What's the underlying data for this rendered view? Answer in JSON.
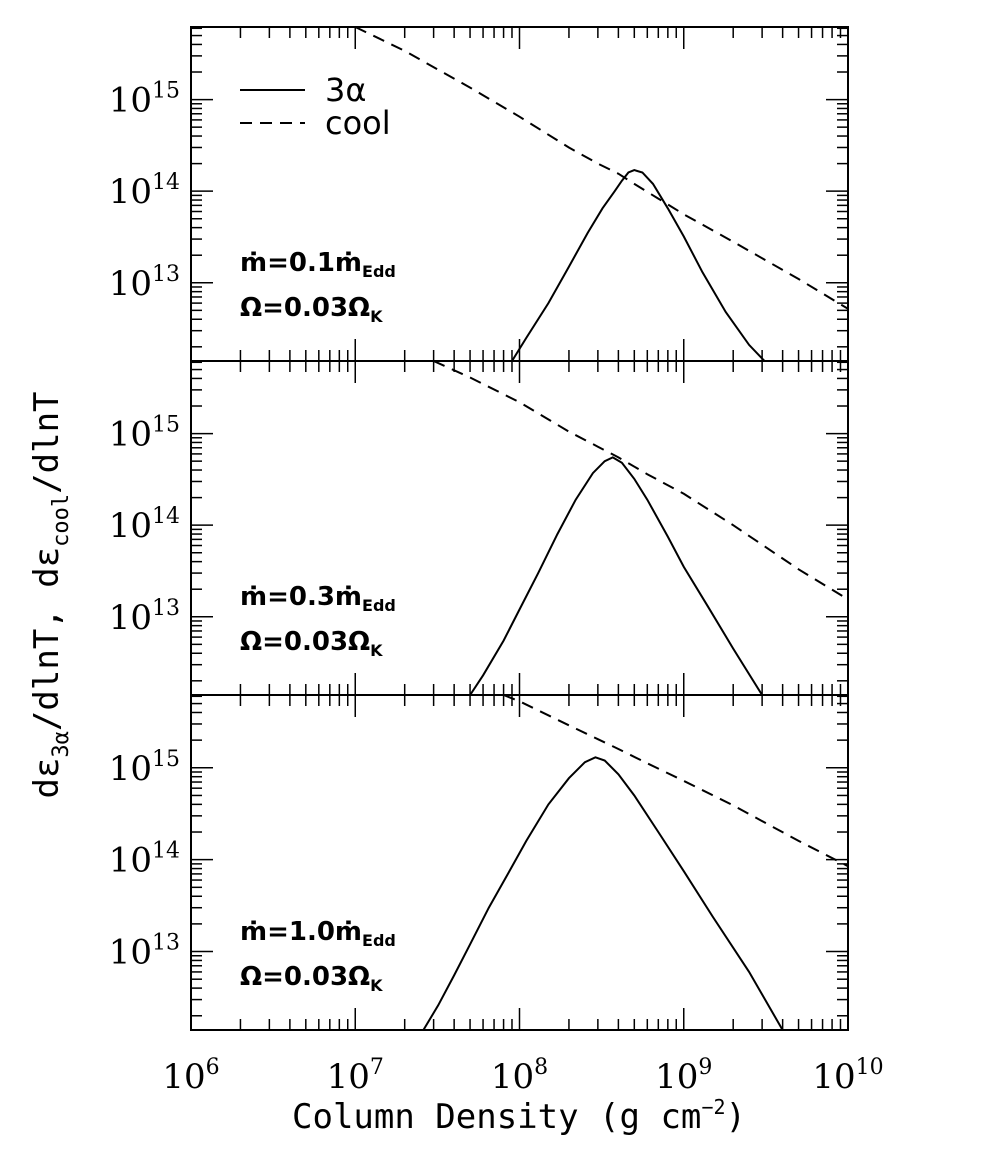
{
  "chart_data": {
    "type": "line",
    "xlabel": "Column Density (g cm",
    "xlabel_exp": "−2",
    "xlabel_close": ")",
    "ylabel_parts": [
      "dε",
      "3α",
      "/dlnT,  dε",
      "cool",
      "/dlnT"
    ],
    "x_scale": "log",
    "xlim": [
      1000000,
      10000000000
    ],
    "x_ticks": [
      {
        "base": "10",
        "exp": "6",
        "value": 1000000
      },
      {
        "base": "10",
        "exp": "7",
        "value": 10000000
      },
      {
        "base": "10",
        "exp": "8",
        "value": 100000000
      },
      {
        "base": "10",
        "exp": "9",
        "value": 1000000000
      },
      {
        "base": "10",
        "exp": "10",
        "value": 10000000000
      }
    ],
    "legend": {
      "position": "top-left",
      "entries": [
        {
          "label": "3α",
          "style": "solid"
        },
        {
          "label": "cool",
          "style": "dashed"
        }
      ]
    },
    "panels": [
      {
        "y_scale": "log",
        "ylim": [
          1400000000000.0,
          6200000000000000.0
        ],
        "y_ticks": [
          {
            "base": "10",
            "exp": "13",
            "value": 10000000000000.0
          },
          {
            "base": "10",
            "exp": "14",
            "value": 100000000000000.0
          },
          {
            "base": "10",
            "exp": "15",
            "value": 1000000000000000.0
          }
        ],
        "annotation": {
          "mdot": "ṁ=0.1ṁ",
          "mdot_sub": "Edd",
          "omega": "Ω=0.03Ω",
          "omega_sub": "K"
        },
        "series": [
          {
            "name": "3α",
            "style": "solid",
            "x": [
              90000000,
              110000000,
              150000000,
              200000000,
              260000000,
              320000000,
              380000000,
              420000000,
              460000000,
              500000000,
              560000000,
              650000000,
              800000000,
              1000000000,
              1300000000,
              1800000000,
              2500000000,
              3100000000
            ],
            "y": [
              1400000000000.0,
              2500000000000.0,
              6000000000000.0,
              15000000000000.0,
              35000000000000.0,
              65000000000000.0,
              100000000000000.0,
              130000000000000.0,
              160000000000000.0,
              170000000000000.0,
              160000000000000.0,
              120000000000000.0,
              65000000000000.0,
              32000000000000.0,
              13000000000000.0,
              4800000000000.0,
              2100000000000.0,
              1400000000000.0
            ]
          },
          {
            "name": "cool",
            "style": "dashed",
            "x": [
              10000000,
              20000000,
              50000000,
              100000000,
              200000000,
              300000000,
              400000000,
              500000000,
              700000000,
              1000000000,
              2000000000,
              5000000000,
              10000000000
            ],
            "y": [
              6200000000000000.0,
              3400000000000000.0,
              1350000000000000.0,
              650000000000000.0,
              300000000000000.0,
              200000000000000.0,
              155000000000000.0,
              120000000000000.0,
              83000000000000.0,
              56000000000000.0,
              28000000000000.0,
              11000000000000.0,
              5200000000000.0
            ]
          }
        ]
      },
      {
        "y_scale": "log",
        "ylim": [
          1400000000000.0,
          6200000000000000.0
        ],
        "y_ticks": [
          {
            "base": "10",
            "exp": "13",
            "value": 10000000000000.0
          },
          {
            "base": "10",
            "exp": "14",
            "value": 100000000000000.0
          },
          {
            "base": "10",
            "exp": "15",
            "value": 1000000000000000.0
          }
        ],
        "annotation": {
          "mdot": "ṁ=0.3ṁ",
          "mdot_sub": "Edd",
          "omega": "Ω=0.03Ω",
          "omega_sub": "K"
        },
        "series": [
          {
            "name": "3α",
            "style": "solid",
            "x": [
              50000000,
              60000000,
              80000000,
              100000000,
              130000000,
              170000000,
              220000000,
              280000000,
              330000000,
              370000000,
              420000000,
              500000000,
              600000000,
              800000000,
              1000000000,
              1400000000,
              2000000000,
              3000000000
            ],
            "y": [
              1400000000000.0,
              2300000000000.0,
              5500000000000.0,
              12000000000000.0,
              30000000000000.0,
              80000000000000.0,
              190000000000000.0,
              370000000000000.0,
              500000000000000.0,
              550000000000000.0,
              480000000000000.0,
              320000000000000.0,
              190000000000000.0,
              75000000000000.0,
              35000000000000.0,
              13000000000000.0,
              4500000000000.0,
              1400000000000.0
            ]
          },
          {
            "name": "cool",
            "style": "dashed",
            "x": [
              30000000,
              50000000,
              100000000,
              200000000,
              300000000,
              400000000,
              600000000,
              1000000000,
              2000000000,
              5000000000,
              10000000000
            ],
            "y": [
              6200000000000000.0,
              4100000000000000.0,
              2200000000000000.0,
              1050000000000000.0,
              720000000000000.0,
              550000000000000.0,
              360000000000000.0,
              220000000000000.0,
              100000000000000.0,
              33000000000000.0,
              15500000000000.0
            ]
          }
        ]
      },
      {
        "y_scale": "log",
        "ylim": [
          1400000000000.0,
          6200000000000000.0
        ],
        "y_ticks": [
          {
            "base": "10",
            "exp": "13",
            "value": 10000000000000.0
          },
          {
            "base": "10",
            "exp": "14",
            "value": 100000000000000.0
          },
          {
            "base": "10",
            "exp": "15",
            "value": 1000000000000000.0
          }
        ],
        "annotation": {
          "mdot": "ṁ=1.0ṁ",
          "mdot_sub": "Edd",
          "omega": "Ω=0.03Ω",
          "omega_sub": "K"
        },
        "series": [
          {
            "name": "3α",
            "style": "solid",
            "x": [
              26000000,
              32000000,
              40000000,
              50000000,
              65000000,
              85000000,
              110000000,
              150000000,
              200000000,
              250000000,
              290000000,
              330000000,
              400000000,
              500000000,
              700000000,
              1000000000,
              1500000000,
              2500000000,
              4000000000
            ],
            "y": [
              1400000000000.0,
              2600000000000.0,
              5500000000000.0,
              12000000000000.0,
              30000000000000.0,
              70000000000000.0,
              160000000000000.0,
              400000000000000.0,
              770000000000000.0,
              1150000000000000.0,
              1300000000000000.0,
              1200000000000000.0,
              850000000000000.0,
              500000000000000.0,
              200000000000000.0,
              75000000000000.0,
              24000000000000.0,
              6000000000000.0,
              1400000000000.0
            ]
          },
          {
            "name": "cool",
            "style": "dashed",
            "x": [
              80000000,
              100000000,
              200000000,
              300000000,
              400000000,
              600000000,
              1000000000,
              2000000000,
              5000000000,
              10000000000
            ],
            "y": [
              6200000000000000.0,
              5300000000000000.0,
              2900000000000000.0,
              2050000000000000.0,
              1600000000000000.0,
              1120000000000000.0,
              720000000000000.0,
              390000000000000.0,
              160000000000000.0,
              85000000000000.0
            ]
          }
        ]
      }
    ]
  }
}
